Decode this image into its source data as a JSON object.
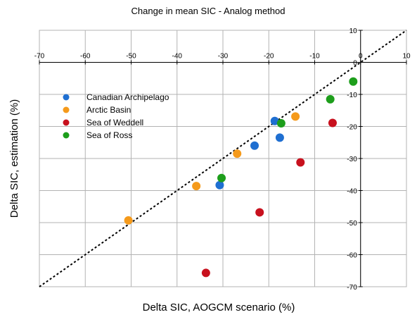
{
  "chart_data": {
    "type": "scatter",
    "title": "Change in mean SIC - Analog method",
    "xlabel": "Delta SIC, AOGCM scenario (%)",
    "ylabel": "Delta SIC, estimation (%)",
    "xlim": [
      -70,
      10
    ],
    "ylim": [
      -70,
      10
    ],
    "x_ticks": [
      -70,
      -60,
      -50,
      -40,
      -30,
      -20,
      -10,
      0,
      10
    ],
    "y_ticks": [
      10,
      0,
      -10,
      -20,
      -30,
      -40,
      -50,
      -60,
      -70
    ],
    "grid": true,
    "reference_line": "y = x",
    "legend_position": "upper-left",
    "series": [
      {
        "name": "Canadian Archipelago",
        "color": "#1f6fd1",
        "points": [
          {
            "x": -18.7,
            "y": -18.3
          },
          {
            "x": -17.6,
            "y": -23.5
          },
          {
            "x": -23.1,
            "y": -26.0
          },
          {
            "x": -30.7,
            "y": -38.3
          }
        ]
      },
      {
        "name": "Arctic Basin",
        "color": "#f59a1b",
        "points": [
          {
            "x": -14.2,
            "y": -16.9
          },
          {
            "x": -26.9,
            "y": -28.5
          },
          {
            "x": -35.8,
            "y": -38.6
          },
          {
            "x": -50.6,
            "y": -49.3
          }
        ]
      },
      {
        "name": "Sea of Weddell",
        "color": "#c8111e",
        "points": [
          {
            "x": -6.1,
            "y": -18.9
          },
          {
            "x": -13.1,
            "y": -31.2
          },
          {
            "x": -22.0,
            "y": -46.8
          },
          {
            "x": -33.7,
            "y": -65.7
          }
        ]
      },
      {
        "name": "Sea of Ross",
        "color": "#1d9e1b",
        "points": [
          {
            "x": -1.6,
            "y": -6.0
          },
          {
            "x": -6.6,
            "y": -11.5
          },
          {
            "x": -17.3,
            "y": -19.0
          },
          {
            "x": -30.3,
            "y": -36.1
          }
        ]
      }
    ]
  }
}
